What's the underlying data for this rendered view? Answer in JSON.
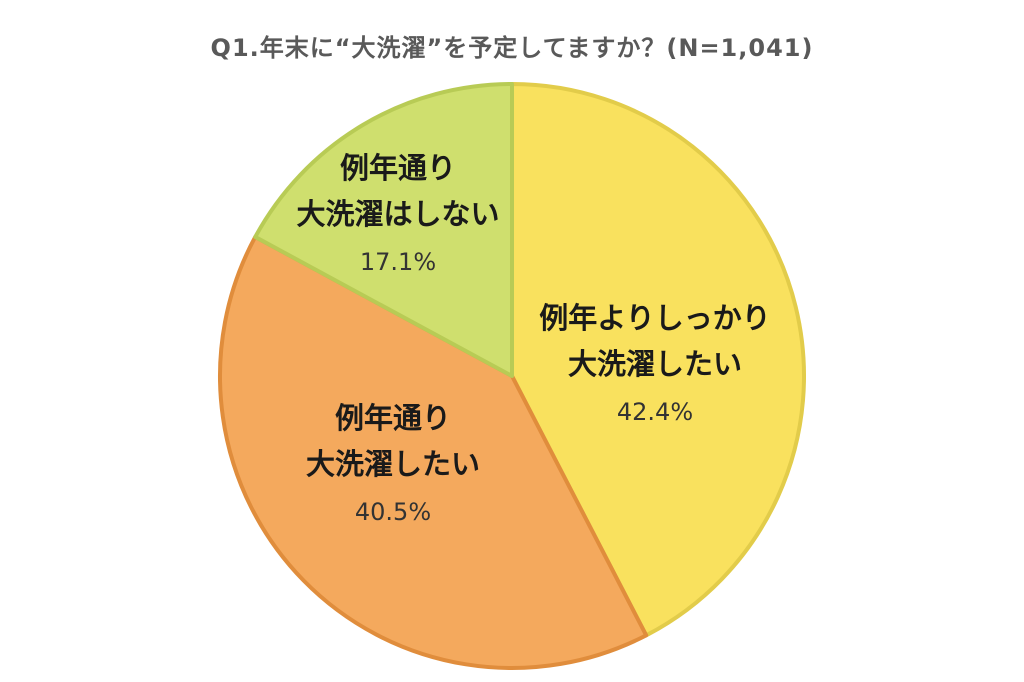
{
  "chart_data": {
    "type": "pie",
    "title": "Q1.年末に“大洗濯”を予定してますか？(N=1,041)",
    "slices": [
      {
        "label_lines": [
          "例年よりしっかり",
          "大洗濯したい"
        ],
        "value": 42.4,
        "value_label": "42.4%",
        "color": "#F9E15E",
        "stroke": "#E2CC4A"
      },
      {
        "label_lines": [
          "例年通り",
          "大洗濯したい"
        ],
        "value": 40.5,
        "value_label": "40.5%",
        "color": "#F4A95D",
        "stroke": "#E08D3C"
      },
      {
        "label_lines": [
          "例年通り",
          "大洗濯はしない"
        ],
        "value": 17.1,
        "value_label": "17.1%",
        "color": "#CFDF6E",
        "stroke": "#B8CB55"
      }
    ]
  }
}
